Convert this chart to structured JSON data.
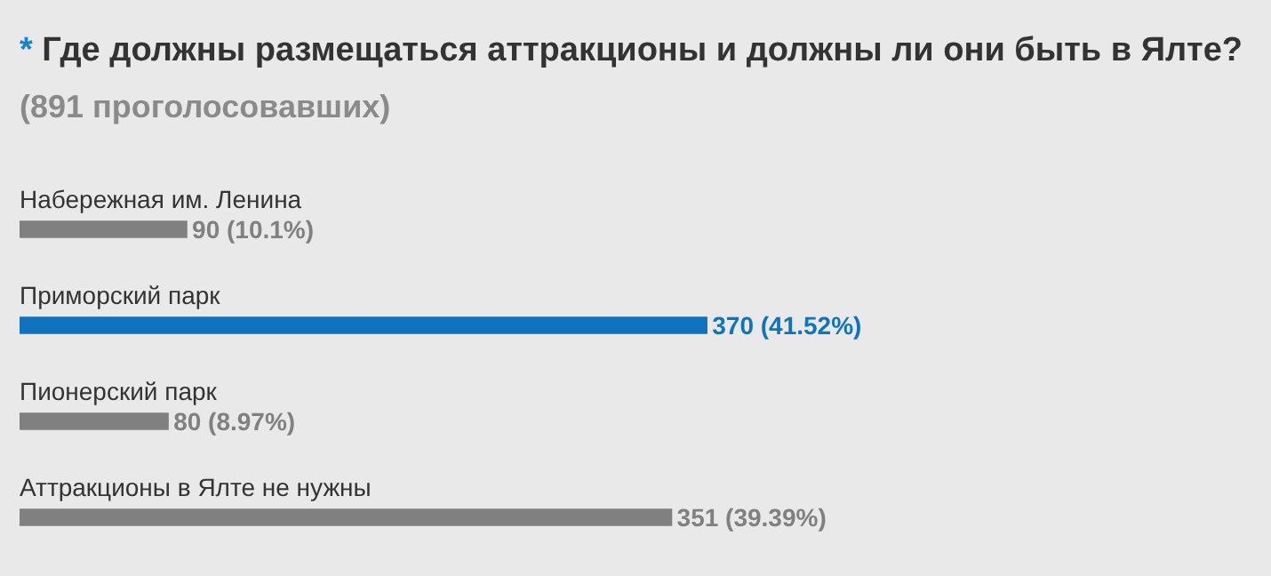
{
  "chart_data": {
    "type": "bar",
    "orientation": "horizontal",
    "title": "* Где должны размещаться аттракционы и должны ли они быть в Ялте?",
    "subtitle": "(891 проголосовавших)",
    "categories": [
      "Набережная им. Ленина",
      "Приморский парк",
      "Пионерский парк",
      "Аттракционы в Ялте не нужны"
    ],
    "values": [
      90,
      370,
      80,
      351
    ],
    "colors": [
      "#808080",
      "#0f74bd",
      "#808080",
      "#808080"
    ],
    "value_labels": [
      "90 (10.1%)",
      "370 (41.52%)",
      "80 (8.97%)",
      "351 (39.39%)"
    ],
    "tick_labels": false,
    "grid": false,
    "legend": false
  }
}
